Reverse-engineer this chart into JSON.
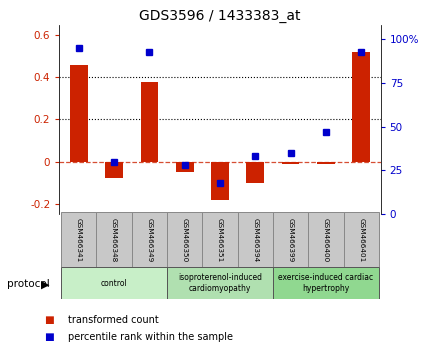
{
  "title": "GDS3596 / 1433383_at",
  "samples": [
    "GSM466341",
    "GSM466348",
    "GSM466349",
    "GSM466350",
    "GSM466351",
    "GSM466394",
    "GSM466399",
    "GSM466400",
    "GSM466401"
  ],
  "transformed_count": [
    0.46,
    -0.08,
    0.38,
    -0.05,
    -0.185,
    -0.1,
    -0.01,
    -0.01,
    0.52
  ],
  "percentile_rank": [
    95,
    30,
    93,
    28,
    18,
    33,
    35,
    47,
    93
  ],
  "groups": [
    {
      "label": "control",
      "start": 0,
      "end": 3,
      "color": "#c8efc8"
    },
    {
      "label": "isoproterenol-induced\ncardiomyopathy",
      "start": 3,
      "end": 6,
      "color": "#b0e0b0"
    },
    {
      "label": "exercise-induced cardiac\nhypertrophy",
      "start": 6,
      "end": 9,
      "color": "#90d890"
    }
  ],
  "bar_color": "#cc2200",
  "dot_color": "#0000cc",
  "ylim_left": [
    -0.25,
    0.65
  ],
  "ylim_right": [
    0,
    108.33
  ],
  "yticks_left": [
    -0.2,
    0.0,
    0.2,
    0.4,
    0.6
  ],
  "ytick_labels_left": [
    "-0.2",
    "0",
    "0.2",
    "0.4",
    "0.6"
  ],
  "yticks_right": [
    0,
    25,
    50,
    75,
    100
  ],
  "ytick_labels_right": [
    "0",
    "25",
    "50",
    "75",
    "100%"
  ],
  "protocol_label": "protocol",
  "legend_items": [
    {
      "color": "#cc2200",
      "label": "transformed count"
    },
    {
      "color": "#0000cc",
      "label": "percentile rank within the sample"
    }
  ],
  "bg_color": "#ffffff",
  "sample_box_color": "#c8c8c8",
  "sample_box_edge": "#888888"
}
